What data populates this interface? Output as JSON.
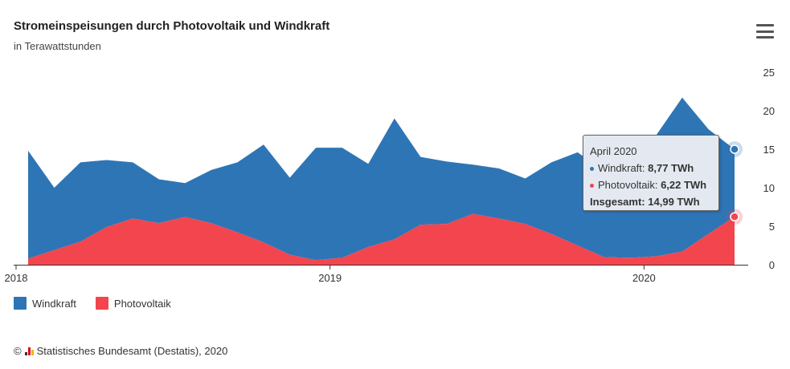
{
  "header": {
    "title": "Stromeinspeisungen durch Photovoltaik und Windkraft",
    "subtitle": "in Terawattstunden",
    "menu_icon": "hamburger-menu-icon"
  },
  "colors": {
    "wind": "#2e75b6",
    "pv": "#f2454e"
  },
  "legend": {
    "wind_label": "Windkraft",
    "pv_label": "Photovoltaik"
  },
  "tooltip": {
    "date": "April 2020",
    "wind_label": "Windkraft:",
    "wind_value": "8,77 TWh",
    "pv_label": "Photovoltaik:",
    "pv_value": "6,22 TWh",
    "total_label": "Insgesamt:",
    "total_value": "14,99 TWh"
  },
  "source": {
    "text": "Statistisches Bundesamt (Destatis), 2020",
    "copyright": "©"
  },
  "chart_data": {
    "type": "area",
    "stacked": true,
    "x": [
      "2018-01",
      "2018-02",
      "2018-03",
      "2018-04",
      "2018-05",
      "2018-06",
      "2018-07",
      "2018-08",
      "2018-09",
      "2018-10",
      "2018-11",
      "2018-12",
      "2019-01",
      "2019-02",
      "2019-03",
      "2019-04",
      "2019-05",
      "2019-06",
      "2019-07",
      "2019-08",
      "2019-09",
      "2019-10",
      "2019-11",
      "2019-12",
      "2020-01",
      "2020-02",
      "2020-03",
      "2020-04"
    ],
    "x_tick_labels": [
      "2018",
      "2019",
      "2020"
    ],
    "series": [
      {
        "name": "Windkraft",
        "values": [
          14.0,
          8.1,
          10.3,
          8.7,
          7.3,
          5.7,
          4.4,
          6.9,
          9.1,
          12.7,
          10.0,
          14.6,
          14.3,
          10.8,
          15.7,
          8.8,
          8.1,
          6.4,
          6.5,
          5.9,
          9.3,
          12.1,
          11.2,
          15.0,
          15.7,
          20.0,
          13.6,
          8.77
        ]
      },
      {
        "name": "Photovoltaik",
        "values": [
          0.8,
          1.9,
          3.0,
          4.9,
          6.0,
          5.4,
          6.2,
          5.4,
          4.2,
          2.9,
          1.3,
          0.6,
          0.9,
          2.3,
          3.3,
          5.2,
          5.3,
          6.6,
          6.0,
          5.3,
          4.0,
          2.5,
          1.0,
          0.9,
          1.1,
          1.7,
          4.0,
          6.22
        ]
      }
    ],
    "ylim": [
      0,
      25
    ],
    "y_ticks": [
      0,
      5,
      10,
      15,
      20,
      25
    ],
    "y_axis_side": "right",
    "grid": false,
    "legend_position": "bottom-left",
    "highlighted_point": "April 2020"
  }
}
